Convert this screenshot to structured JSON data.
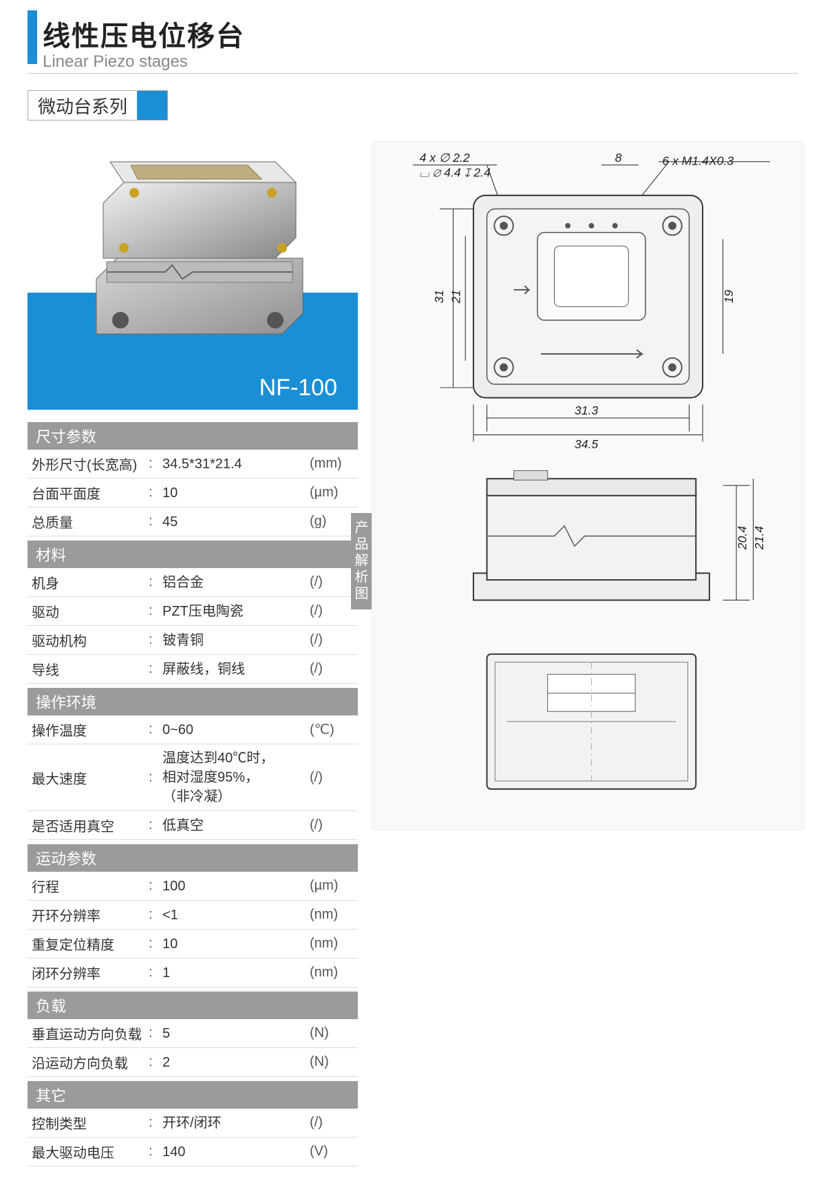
{
  "title": {
    "cn": "线性压电位移台",
    "en": "Linear Piezo stages"
  },
  "subtitle": "微动台系列",
  "model": "NF-100",
  "side_tab": "产品解析图",
  "colors": {
    "brand_blue": "#1b8fd6",
    "section_gray": "#9c9a9b",
    "divider": "#dddddd",
    "text": "#333333"
  },
  "diagram": {
    "callout_left": "4 x ∅ 2.2",
    "callout_left2": "⌴ ∅ 4.4 ↧ 2.4",
    "callout_right_top": "8",
    "callout_right": "6 x  M1.4X0.3",
    "top_view": {
      "width_outer": "34.5",
      "width_inner": "31.3",
      "height_outer": "31",
      "height_inner_l": "21",
      "height_inner_r": "19"
    },
    "front_view": {
      "height_outer": "21.4",
      "height_inner": "20.4"
    }
  },
  "sections": [
    {
      "head": "尺寸参数",
      "rows": [
        {
          "label": "外形尺寸(长宽高)",
          "value": "34.5*31*21.4",
          "unit": "(mm)"
        },
        {
          "label": "台面平面度",
          "value": "10",
          "unit": "(µm)"
        },
        {
          "label": "总质量",
          "value": "45",
          "unit": "(g)"
        }
      ]
    },
    {
      "head": "材料",
      "rows": [
        {
          "label": "机身",
          "value": "铝合金",
          "unit": "(/)"
        },
        {
          "label": "驱动",
          "value": "PZT压电陶瓷",
          "unit": "(/)"
        },
        {
          "label": "驱动机构",
          "value": "铍青铜",
          "unit": "(/)"
        },
        {
          "label": "导线",
          "value": "屏蔽线，铜线",
          "unit": "(/)"
        }
      ]
    },
    {
      "head": "操作环境",
      "rows": [
        {
          "label": "操作温度",
          "value": "0~60",
          "unit": "(℃)"
        },
        {
          "label": "最大速度",
          "value": "温度达到40℃时，\n相对湿度95%，\n（非冷凝）",
          "unit": "(/)"
        },
        {
          "label": "是否适用真空",
          "value": "低真空",
          "unit": "(/)"
        }
      ]
    },
    {
      "head": "运动参数",
      "rows": [
        {
          "label": "行程",
          "value": "100",
          "unit": "(µm)"
        },
        {
          "label": "开环分辨率",
          "value": "<1",
          "unit": "(nm)"
        },
        {
          "label": "重复定位精度",
          "value": "10",
          "unit": "(nm)"
        },
        {
          "label": "闭环分辨率",
          "value": "1",
          "unit": "(nm)"
        }
      ]
    },
    {
      "head": "负载",
      "rows": [
        {
          "label": "垂直运动方向负载",
          "value": "5",
          "unit": "(N)"
        },
        {
          "label": "沿运动方向负载",
          "value": "2",
          "unit": "(N)"
        }
      ]
    },
    {
      "head": "其它",
      "rows": [
        {
          "label": "控制类型",
          "value": "开环/闭环",
          "unit": "(/)"
        },
        {
          "label": "最大驱动电压",
          "value": "140",
          "unit": "(V)"
        }
      ]
    }
  ]
}
